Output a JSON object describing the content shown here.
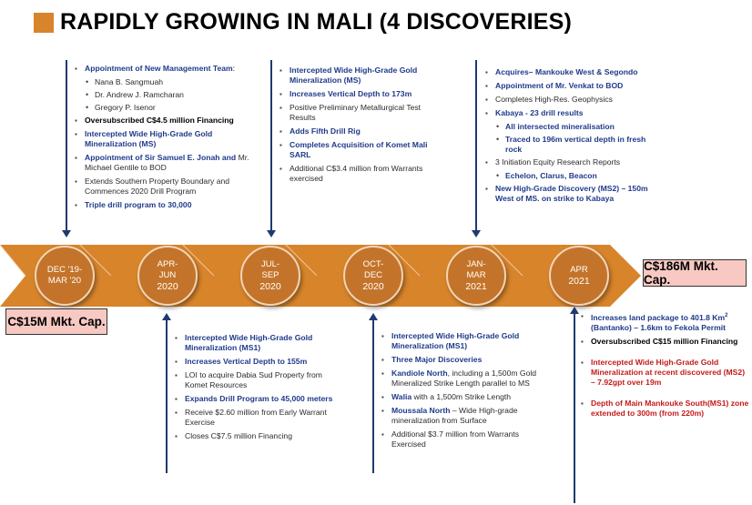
{
  "title": "RAPIDLY GROWING IN MALI (4 DISCOVERIES)",
  "colors": {
    "accent_orange": "#c4742a",
    "navy": "#1f3a6e",
    "bold_blue": "#1f3a8a",
    "red": "#c41a1a",
    "cap_box": "#f8c9c3"
  },
  "timeline": [
    {
      "l1": "DEC '19-",
      "l2": "MAR '20",
      "l3": ""
    },
    {
      "l1": "APR-",
      "l2": "JUN",
      "l3": "2020"
    },
    {
      "l1": "JUL-",
      "l2": "SEP",
      "l3": "2020"
    },
    {
      "l1": "OCT-",
      "l2": "DEC",
      "l3": "2020"
    },
    {
      "l1": "JAN-",
      "l2": "MAR",
      "l3": "2021"
    },
    {
      "l1": "APR",
      "l2": "2021",
      "l3": ""
    }
  ],
  "mkt_cap": {
    "start": "C$15M Mkt. Cap.",
    "end": "C$186M Mkt. Cap."
  },
  "top1": {
    "a_bold": "Appointment of New Management Team",
    "a_colon": ":",
    "a_sub1": "Nana B. Sangmuah",
    "a_sub2": "Dr. Andrew J. Ramcharan",
    "a_sub3": "Gregory P. Isenor",
    "b": "Oversubscribed C$4.5 million Financing",
    "c": "Intercepted Wide High-Grade Gold Mineralization (MS)",
    "d_bold": "Appointment of Sir Samuel E. Jonah and",
    "d_rest": "Mr. Michael Gentile to BOD",
    "e": "Extends Southern Property Boundary and Commences 2020 Drill Program",
    "f": "Triple drill program to 30,000"
  },
  "top2": {
    "a": "Intercepted Wide High-Grade Gold Mineralization (MS)",
    "b": "Increases Vertical Depth to 173m",
    "c": "Positive Preliminary Metallurgical Test Results",
    "d": "Adds Fifth Drill Rig",
    "e": "Completes Acquisition of Komet Mali SARL",
    "f": "Additional C$3.4 million from Warrants exercised"
  },
  "top3": {
    "a": "Acquires– Mankouke West & Segondo",
    "b": "Appointment of Mr. Venkat to BOD",
    "c": "Completes High-Res. Geophysics",
    "d": "Kabaya - 23 drill results",
    "d_sub1": "All intersected mineralisation",
    "d_sub2": "Traced to 196m vertical depth in fresh rock",
    "e": "3 Initiation Equity Research Reports",
    "e_sub1": "Echelon, Clarus, Beacon",
    "f": "New High-Grade Discovery (MS2) – 150m West of MS. on strike to Kabaya"
  },
  "bot1": {
    "a": "Intercepted Wide High-Grade Gold Mineralization (MS1)",
    "b": "Increases Vertical Depth to 155m",
    "c": "LOI to acquire Dabia Sud Property from Komet Resources",
    "d": "Expands Drill Program to 45,000 meters",
    "e": "Receive $2.60 million from Early Warrant Exercise",
    "f": "Closes C$7.5 million Financing"
  },
  "bot2": {
    "a": "Intercepted Wide High-Grade Gold Mineralization (MS1)",
    "b": "Three Major Discoveries",
    "c_bold": "Kandiole North",
    "c_rest": ", including a 1,500m Gold Mineralized Strike Length parallel to MS",
    "d_bold": "Walia",
    "d_rest": " with a 1,500m Strike Length",
    "e_bold": "Moussala North",
    "e_rest": " – Wide High-grade mineralization from Surface",
    "f": "Additional $3.7 million from Warrants Exercised"
  },
  "bot3": {
    "a_pre": "Increases land package to 401.8 Km",
    "a_sup": "2",
    "a_post": " (Bantanko) – 1.6km to Fekola Permit",
    "b": "Oversubscribed C$15 million Financing",
    "c": "Intercepted Wide High-Grade Gold Mineralization at recent discovered (MS2) – 7.92gpt over 19m",
    "d": "Depth of Main Mankouke South(MS1) zone extended to 300m (from 220m)"
  }
}
